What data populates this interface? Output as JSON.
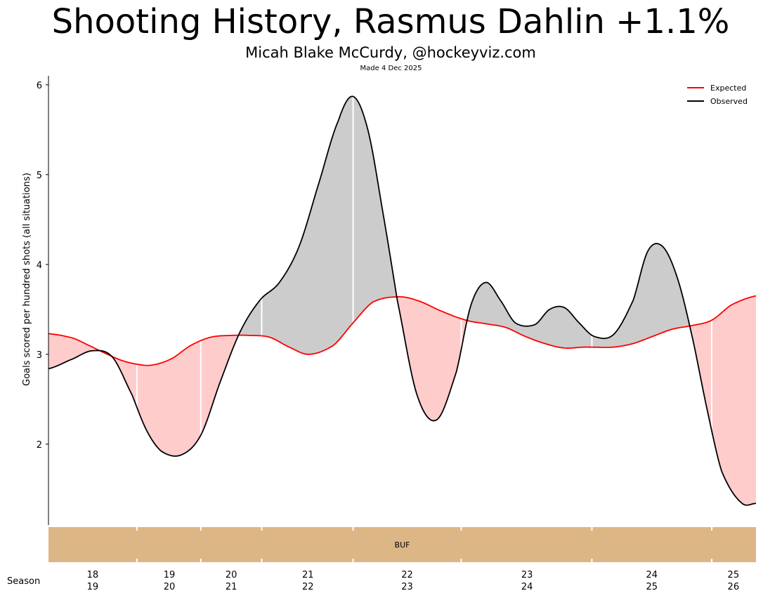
{
  "title": "Shooting History, Rasmus Dahlin +1.1%",
  "subtitle": "Micah Blake McCurdy, @hockeyviz.com",
  "made": "Made 4 Dec 2025",
  "colors": {
    "expected": "#ff0000",
    "observed": "#000000",
    "fill_above": "#cccccc",
    "fill_below": "#ffcccc",
    "team_band": "#ddb685"
  },
  "chart_data": {
    "type": "line",
    "ylabel": "Goals scored per hundred shots (all situations)",
    "xlabel": "Season",
    "ylim": [
      1.1,
      6.1
    ],
    "yticks": [
      2,
      3,
      4,
      5,
      6
    ],
    "xlim": [
      -0.45,
      6.75
    ],
    "legend_position": "top-right",
    "series": [
      {
        "name": "Expected",
        "color": "#ff0000",
        "x": [
          -0.45,
          -0.2,
          0.0,
          0.15,
          0.3,
          0.45,
          0.6,
          0.8,
          1.0,
          1.2,
          1.4,
          1.6,
          1.8,
          2.0,
          2.2,
          2.45,
          2.65,
          2.85,
          3.1,
          3.3,
          3.55,
          3.8,
          4.0,
          4.2,
          4.4,
          4.6,
          4.8,
          5.0,
          5.3,
          5.5,
          5.7,
          5.9,
          6.1,
          6.3,
          6.5,
          6.75
        ],
        "y": [
          3.23,
          3.18,
          3.08,
          3.0,
          2.93,
          2.89,
          2.88,
          2.95,
          3.1,
          3.19,
          3.21,
          3.21,
          3.19,
          3.08,
          3.0,
          3.1,
          3.35,
          3.58,
          3.64,
          3.6,
          3.48,
          3.38,
          3.34,
          3.3,
          3.2,
          3.12,
          3.07,
          3.08,
          3.08,
          3.12,
          3.2,
          3.28,
          3.32,
          3.38,
          3.55,
          3.65
        ]
      },
      {
        "name": "Observed",
        "color": "#000000",
        "x": [
          -0.45,
          -0.2,
          0.0,
          0.2,
          0.4,
          0.55,
          0.7,
          0.9,
          1.1,
          1.3,
          1.5,
          1.7,
          1.9,
          2.1,
          2.3,
          2.5,
          2.65,
          2.8,
          2.95,
          3.1,
          3.3,
          3.5,
          3.7,
          3.85,
          4.0,
          4.15,
          4.3,
          4.5,
          4.65,
          4.8,
          4.95,
          5.1,
          5.3,
          5.5,
          5.65,
          5.8,
          5.95,
          6.1,
          6.25,
          6.4,
          6.6,
          6.75
        ],
        "y": [
          2.84,
          2.95,
          3.04,
          2.97,
          2.55,
          2.15,
          1.92,
          1.88,
          2.1,
          2.7,
          3.25,
          3.6,
          3.8,
          4.2,
          4.9,
          5.6,
          5.87,
          5.5,
          4.6,
          3.6,
          2.55,
          2.27,
          2.8,
          3.55,
          3.8,
          3.6,
          3.35,
          3.33,
          3.5,
          3.52,
          3.35,
          3.2,
          3.22,
          3.6,
          4.15,
          4.2,
          3.85,
          3.2,
          2.4,
          1.7,
          1.35,
          1.34
        ]
      }
    ],
    "season_boundaries": [
      0.45,
      1.1,
      1.72,
      2.65,
      3.75,
      5.08,
      6.3
    ],
    "season_ticks": [
      {
        "x": 0.0,
        "label": "18\n19"
      },
      {
        "x": 0.78,
        "label": "19\n20"
      },
      {
        "x": 1.41,
        "label": "20\n21"
      },
      {
        "x": 2.19,
        "label": "21\n22"
      },
      {
        "x": 3.2,
        "label": "22\n23"
      },
      {
        "x": 4.42,
        "label": "23\n24"
      },
      {
        "x": 5.69,
        "label": "24\n25"
      },
      {
        "x": 6.52,
        "label": "25\n26"
      }
    ],
    "teams": [
      {
        "label": "BUF",
        "x0": -0.45,
        "x1": 6.75
      }
    ]
  }
}
